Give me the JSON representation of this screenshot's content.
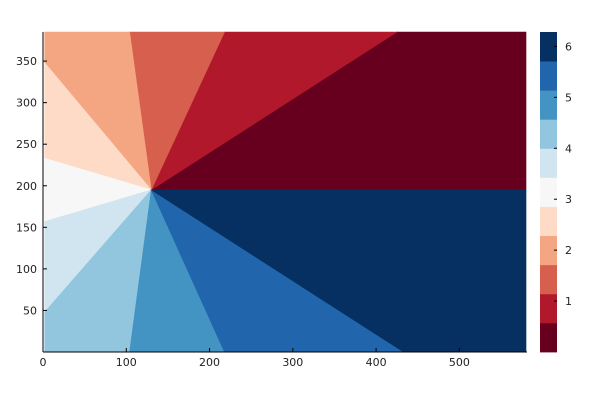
{
  "chart_data": {
    "type": "heatmap",
    "title": "",
    "xlabel": "",
    "ylabel": "",
    "xlim": [
      0,
      580
    ],
    "ylim": [
      0,
      385
    ],
    "x_ticks": [
      {
        "value": 0,
        "label": "0"
      },
      {
        "value": 100,
        "label": "100"
      },
      {
        "value": 200,
        "label": "200"
      },
      {
        "value": 300,
        "label": "300"
      },
      {
        "value": 400,
        "label": "400"
      },
      {
        "value": 500,
        "label": "500"
      }
    ],
    "y_ticks": [
      {
        "value": 50,
        "label": "50"
      },
      {
        "value": 100,
        "label": "100"
      },
      {
        "value": 150,
        "label": "150"
      },
      {
        "value": 200,
        "label": "200"
      },
      {
        "value": 250,
        "label": "250"
      },
      {
        "value": 300,
        "label": "300"
      },
      {
        "value": 350,
        "label": "350"
      }
    ],
    "center": [
      130,
      195
    ],
    "colorbar": {
      "range": [
        0,
        6.283
      ],
      "ticks": [
        {
          "value": 1,
          "label": "1"
        },
        {
          "value": 2,
          "label": "2"
        },
        {
          "value": 3,
          "label": "3"
        },
        {
          "value": 4,
          "label": "4"
        },
        {
          "value": 5,
          "label": "5"
        },
        {
          "value": 6,
          "label": "6"
        }
      ],
      "colors": [
        "#67001f",
        "#b2182b",
        "#d6604d",
        "#f4a582",
        "#fddbc7",
        "#f7f7f7",
        "#d1e5f0",
        "#92c5de",
        "#4393c3",
        "#2166ac",
        "#053061"
      ]
    },
    "regions": [
      {
        "polygon": [
          [
            130,
            195
          ],
          [
            580,
            195
          ],
          [
            580,
            385
          ],
          [
            425,
            385
          ]
        ],
        "level": 0
      },
      {
        "polygon": [
          [
            130,
            195
          ],
          [
            425,
            385
          ],
          [
            218,
            385
          ]
        ],
        "level": 1
      },
      {
        "polygon": [
          [
            130,
            195
          ],
          [
            218,
            385
          ],
          [
            104,
            385
          ]
        ],
        "level": 2
      },
      {
        "polygon": [
          [
            130,
            195
          ],
          [
            104,
            385
          ],
          [
            2,
            385
          ],
          [
            2,
            348
          ]
        ],
        "level": 3
      },
      {
        "polygon": [
          [
            130,
            195
          ],
          [
            2,
            348
          ],
          [
            2,
            233
          ]
        ],
        "level": 4
      },
      {
        "polygon": [
          [
            130,
            195
          ],
          [
            2,
            233
          ],
          [
            2,
            157
          ]
        ],
        "level": 5
      },
      {
        "polygon": [
          [
            130,
            195
          ],
          [
            2,
            157
          ],
          [
            2,
            48
          ]
        ],
        "level": 6
      },
      {
        "polygon": [
          [
            130,
            195
          ],
          [
            2,
            48
          ],
          [
            2,
            0
          ],
          [
            104,
            0
          ]
        ],
        "level": 7
      },
      {
        "polygon": [
          [
            130,
            195
          ],
          [
            104,
            0
          ],
          [
            218,
            0
          ]
        ],
        "level": 8
      },
      {
        "polygon": [
          [
            130,
            195
          ],
          [
            218,
            0
          ],
          [
            433,
            0
          ]
        ],
        "level": 9
      },
      {
        "polygon": [
          [
            130,
            195
          ],
          [
            433,
            0
          ],
          [
            580,
            0
          ],
          [
            580,
            195
          ]
        ],
        "level": 10
      }
    ]
  }
}
